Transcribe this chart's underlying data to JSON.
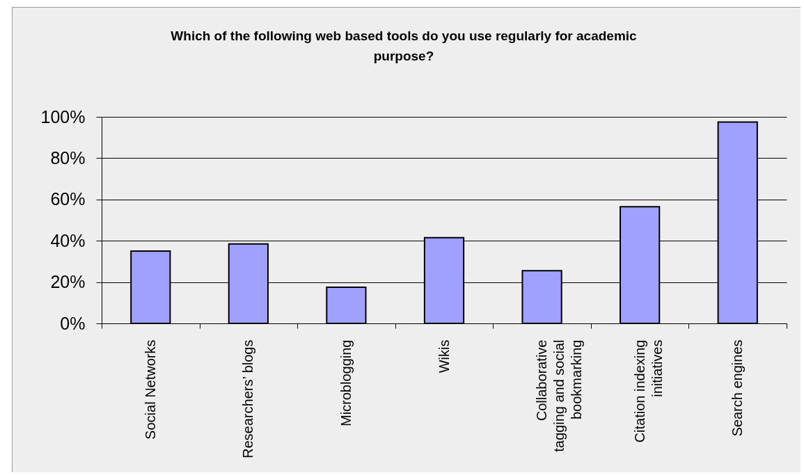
{
  "chart_data": {
    "type": "bar",
    "title": "Which of the following web based tools do you use regularly for academic purpose?",
    "categories": [
      "Social Networks",
      "Researchers’ blogs",
      "Microblogging",
      "Wikis",
      "Collaborative tagging and social bookmarking",
      "Citation indexing initiatives",
      "Search engines"
    ],
    "values": [
      35,
      38.5,
      17.5,
      41.5,
      25.5,
      56.5,
      97.5
    ],
    "color": "#a0a0ff",
    "ylim": [
      0,
      100
    ],
    "yticks": [
      {
        "value": 0,
        "label": "0%"
      },
      {
        "value": 20,
        "label": "20%"
      },
      {
        "value": 40,
        "label": "40%"
      },
      {
        "value": 60,
        "label": "60%"
      },
      {
        "value": 80,
        "label": "80%"
      },
      {
        "value": 100,
        "label": "100%"
      }
    ],
    "grid": "y"
  }
}
